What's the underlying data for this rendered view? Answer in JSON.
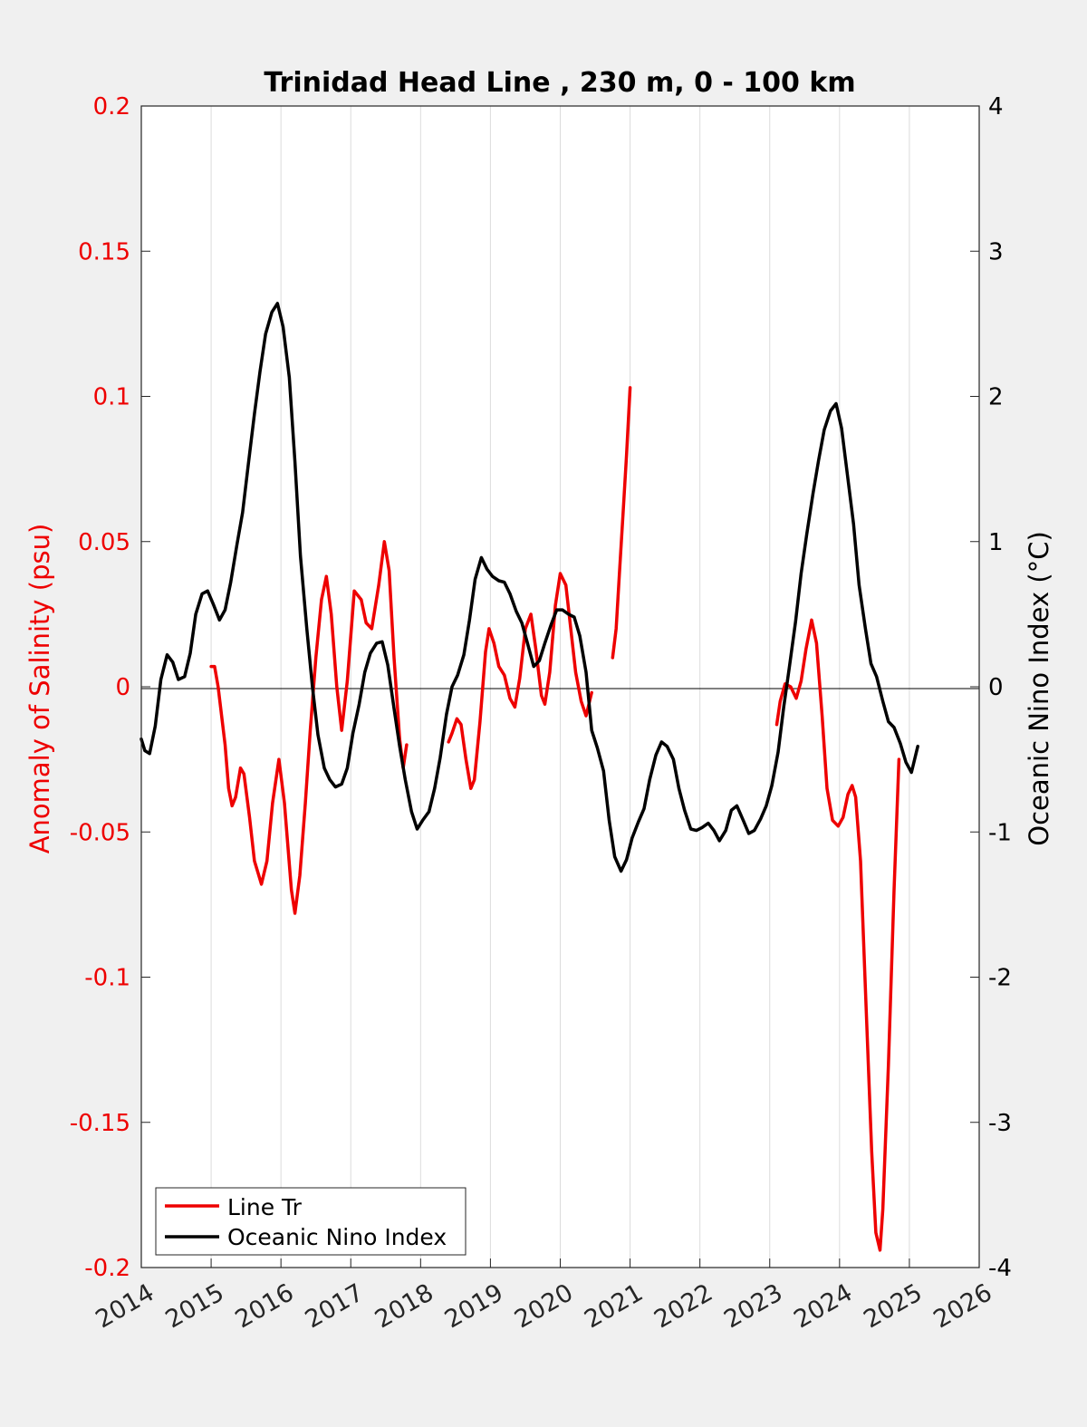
{
  "chart_data": {
    "type": "line",
    "title": "Trinidad Head Line , 230 m, 0 - 100 km",
    "ylabel_left": "Anomaly of Salinity (psu)",
    "ylabel_right": "Oceanic Nino Index (°C)",
    "xlim": [
      2014,
      2026
    ],
    "ylim_left": [
      -0.2,
      0.2
    ],
    "ylim_right": [
      -4,
      4
    ],
    "x_ticks": [
      "2014",
      "2015",
      "2016",
      "2017",
      "2018",
      "2019",
      "2020",
      "2021",
      "2022",
      "2023",
      "2024",
      "2025",
      "2026"
    ],
    "y_left_ticks": [
      "-0.2",
      "-0.15",
      "-0.1",
      "-0.05",
      "0",
      "0.05",
      "0.1",
      "0.15",
      "0.2"
    ],
    "y_right_ticks": [
      "-4",
      "-3",
      "-2",
      "-1",
      "0",
      "1",
      "2",
      "3",
      "4"
    ],
    "grid": "vertical",
    "legend_position": "bottom-left",
    "colors": {
      "salinity": "#ee0000",
      "oni": "#000000",
      "left_axis": "#ee0000",
      "right_axis": "#000000"
    },
    "series": [
      {
        "name": "Line Tr",
        "axis": "left",
        "segments": [
          [
            [
              2015.0,
              0.007
            ],
            [
              2015.05,
              0.007
            ],
            [
              2015.1,
              0.0
            ],
            [
              2015.2,
              -0.02
            ],
            [
              2015.25,
              -0.035
            ],
            [
              2015.3,
              -0.041
            ],
            [
              2015.35,
              -0.038
            ],
            [
              2015.42,
              -0.028
            ],
            [
              2015.47,
              -0.03
            ],
            [
              2015.55,
              -0.045
            ],
            [
              2015.62,
              -0.06
            ],
            [
              2015.72,
              -0.068
            ],
            [
              2015.8,
              -0.06
            ],
            [
              2015.88,
              -0.04
            ],
            [
              2015.97,
              -0.025
            ],
            [
              2016.05,
              -0.04
            ],
            [
              2016.15,
              -0.07
            ],
            [
              2016.2,
              -0.078
            ],
            [
              2016.27,
              -0.065
            ],
            [
              2016.35,
              -0.04
            ],
            [
              2016.42,
              -0.015
            ],
            [
              2016.5,
              0.01
            ],
            [
              2016.58,
              0.03
            ],
            [
              2016.65,
              0.038
            ],
            [
              2016.72,
              0.025
            ],
            [
              2016.8,
              0.0
            ],
            [
              2016.87,
              -0.015
            ],
            [
              2016.95,
              0.002
            ],
            [
              2017.05,
              0.033
            ],
            [
              2017.15,
              0.03
            ],
            [
              2017.22,
              0.022
            ],
            [
              2017.3,
              0.02
            ],
            [
              2017.4,
              0.035
            ],
            [
              2017.48,
              0.05
            ],
            [
              2017.55,
              0.04
            ],
            [
              2017.62,
              0.01
            ],
            [
              2017.7,
              -0.018
            ],
            [
              2017.75,
              -0.028
            ],
            [
              2017.8,
              -0.02
            ]
          ],
          [
            [
              2018.4,
              -0.019
            ],
            [
              2018.45,
              -0.016
            ],
            [
              2018.52,
              -0.011
            ],
            [
              2018.58,
              -0.013
            ],
            [
              2018.65,
              -0.025
            ],
            [
              2018.72,
              -0.035
            ],
            [
              2018.77,
              -0.032
            ],
            [
              2018.85,
              -0.012
            ],
            [
              2018.93,
              0.012
            ],
            [
              2018.98,
              0.02
            ],
            [
              2019.05,
              0.015
            ],
            [
              2019.12,
              0.007
            ],
            [
              2019.2,
              0.004
            ],
            [
              2019.28,
              -0.004
            ],
            [
              2019.35,
              -0.007
            ],
            [
              2019.42,
              0.003
            ],
            [
              2019.5,
              0.02
            ],
            [
              2019.58,
              0.025
            ],
            [
              2019.65,
              0.013
            ],
            [
              2019.73,
              -0.003
            ],
            [
              2019.78,
              -0.006
            ],
            [
              2019.85,
              0.005
            ],
            [
              2019.93,
              0.028
            ],
            [
              2020.0,
              0.039
            ],
            [
              2020.08,
              0.035
            ],
            [
              2020.15,
              0.02
            ],
            [
              2020.22,
              0.005
            ],
            [
              2020.3,
              -0.005
            ],
            [
              2020.37,
              -0.01
            ],
            [
              2020.45,
              -0.002
            ]
          ],
          [
            [
              2020.75,
              0.01
            ],
            [
              2020.8,
              0.02
            ],
            [
              2020.85,
              0.04
            ],
            [
              2020.9,
              0.06
            ],
            [
              2020.95,
              0.08
            ],
            [
              2021.0,
              0.103
            ]
          ],
          [
            [
              2023.1,
              -0.013
            ],
            [
              2023.15,
              -0.005
            ],
            [
              2023.22,
              0.001
            ],
            [
              2023.3,
              0.0
            ],
            [
              2023.38,
              -0.004
            ],
            [
              2023.45,
              0.002
            ],
            [
              2023.52,
              0.013
            ],
            [
              2023.6,
              0.023
            ],
            [
              2023.67,
              0.015
            ],
            [
              2023.75,
              -0.01
            ],
            [
              2023.82,
              -0.035
            ],
            [
              2023.9,
              -0.046
            ],
            [
              2023.98,
              -0.048
            ],
            [
              2024.05,
              -0.045
            ],
            [
              2024.12,
              -0.037
            ],
            [
              2024.18,
              -0.034
            ],
            [
              2024.23,
              -0.038
            ],
            [
              2024.3,
              -0.06
            ],
            [
              2024.38,
              -0.11
            ],
            [
              2024.46,
              -0.16
            ],
            [
              2024.52,
              -0.188
            ],
            [
              2024.58,
              -0.194
            ],
            [
              2024.62,
              -0.18
            ],
            [
              2024.7,
              -0.13
            ],
            [
              2024.78,
              -0.07
            ],
            [
              2024.85,
              -0.025
            ]
          ]
        ]
      },
      {
        "name": "Oceanic Nino Index",
        "axis": "right",
        "segments": [
          [
            [
              2014.0,
              -0.36
            ],
            [
              2014.05,
              -0.44
            ],
            [
              2014.12,
              -0.46
            ],
            [
              2014.2,
              -0.27
            ],
            [
              2014.28,
              0.05
            ],
            [
              2014.37,
              0.22
            ],
            [
              2014.45,
              0.17
            ],
            [
              2014.53,
              0.05
            ],
            [
              2014.62,
              0.07
            ],
            [
              2014.7,
              0.23
            ],
            [
              2014.78,
              0.5
            ],
            [
              2014.87,
              0.64
            ],
            [
              2014.95,
              0.66
            ],
            [
              2015.03,
              0.57
            ],
            [
              2015.12,
              0.46
            ],
            [
              2015.2,
              0.53
            ],
            [
              2015.28,
              0.72
            ],
            [
              2015.37,
              0.98
            ],
            [
              2015.45,
              1.2
            ],
            [
              2015.53,
              1.52
            ],
            [
              2015.62,
              1.88
            ],
            [
              2015.7,
              2.17
            ],
            [
              2015.78,
              2.43
            ],
            [
              2015.87,
              2.58
            ],
            [
              2015.95,
              2.64
            ],
            [
              2016.03,
              2.48
            ],
            [
              2016.12,
              2.13
            ],
            [
              2016.2,
              1.55
            ],
            [
              2016.28,
              0.9
            ],
            [
              2016.37,
              0.4
            ],
            [
              2016.45,
              0.0
            ],
            [
              2016.53,
              -0.33
            ],
            [
              2016.62,
              -0.56
            ],
            [
              2016.7,
              -0.64
            ],
            [
              2016.78,
              -0.69
            ],
            [
              2016.87,
              -0.67
            ],
            [
              2016.95,
              -0.56
            ],
            [
              2017.03,
              -0.32
            ],
            [
              2017.12,
              -0.12
            ],
            [
              2017.2,
              0.1
            ],
            [
              2017.28,
              0.23
            ],
            [
              2017.37,
              0.3
            ],
            [
              2017.45,
              0.31
            ],
            [
              2017.53,
              0.15
            ],
            [
              2017.62,
              -0.15
            ],
            [
              2017.7,
              -0.41
            ],
            [
              2017.78,
              -0.64
            ],
            [
              2017.87,
              -0.86
            ],
            [
              2017.95,
              -0.98
            ],
            [
              2018.03,
              -0.92
            ],
            [
              2018.12,
              -0.86
            ],
            [
              2018.2,
              -0.7
            ],
            [
              2018.28,
              -0.49
            ],
            [
              2018.37,
              -0.19
            ],
            [
              2018.45,
              0.0
            ],
            [
              2018.53,
              0.08
            ],
            [
              2018.62,
              0.22
            ],
            [
              2018.7,
              0.46
            ],
            [
              2018.78,
              0.74
            ],
            [
              2018.87,
              0.89
            ],
            [
              2018.95,
              0.81
            ],
            [
              2019.03,
              0.76
            ],
            [
              2019.12,
              0.73
            ],
            [
              2019.2,
              0.72
            ],
            [
              2019.28,
              0.64
            ],
            [
              2019.37,
              0.52
            ],
            [
              2019.45,
              0.44
            ],
            [
              2019.53,
              0.3
            ],
            [
              2019.62,
              0.14
            ],
            [
              2019.7,
              0.18
            ],
            [
              2019.78,
              0.3
            ],
            [
              2019.87,
              0.43
            ],
            [
              2019.95,
              0.53
            ],
            [
              2020.03,
              0.53
            ],
            [
              2020.12,
              0.5
            ],
            [
              2020.2,
              0.48
            ],
            [
              2020.28,
              0.35
            ],
            [
              2020.37,
              0.1
            ],
            [
              2020.45,
              -0.3
            ],
            [
              2020.53,
              -0.42
            ],
            [
              2020.62,
              -0.58
            ],
            [
              2020.7,
              -0.92
            ],
            [
              2020.78,
              -1.17
            ],
            [
              2020.87,
              -1.27
            ],
            [
              2020.95,
              -1.19
            ],
            [
              2021.03,
              -1.04
            ],
            [
              2021.12,
              -0.93
            ],
            [
              2021.2,
              -0.84
            ],
            [
              2021.28,
              -0.64
            ],
            [
              2021.37,
              -0.47
            ],
            [
              2021.45,
              -0.38
            ],
            [
              2021.53,
              -0.41
            ],
            [
              2021.62,
              -0.5
            ],
            [
              2021.7,
              -0.7
            ],
            [
              2021.78,
              -0.85
            ],
            [
              2021.87,
              -0.98
            ],
            [
              2021.95,
              -0.99
            ],
            [
              2022.03,
              -0.97
            ],
            [
              2022.12,
              -0.94
            ],
            [
              2022.2,
              -0.99
            ],
            [
              2022.28,
              -1.06
            ],
            [
              2022.37,
              -0.99
            ],
            [
              2022.45,
              -0.85
            ],
            [
              2022.53,
              -0.82
            ],
            [
              2022.62,
              -0.92
            ],
            [
              2022.7,
              -1.01
            ],
            [
              2022.78,
              -0.99
            ],
            [
              2022.87,
              -0.91
            ],
            [
              2022.95,
              -0.82
            ],
            [
              2023.03,
              -0.68
            ],
            [
              2023.12,
              -0.45
            ],
            [
              2023.2,
              -0.14
            ],
            [
              2023.28,
              0.13
            ],
            [
              2023.37,
              0.45
            ],
            [
              2023.45,
              0.78
            ],
            [
              2023.53,
              1.05
            ],
            [
              2023.62,
              1.33
            ],
            [
              2023.7,
              1.56
            ],
            [
              2023.78,
              1.77
            ],
            [
              2023.87,
              1.9
            ],
            [
              2023.95,
              1.95
            ],
            [
              2024.03,
              1.78
            ],
            [
              2024.12,
              1.43
            ],
            [
              2024.2,
              1.12
            ],
            [
              2024.28,
              0.7
            ],
            [
              2024.37,
              0.4
            ],
            [
              2024.45,
              0.16
            ],
            [
              2024.53,
              0.07
            ],
            [
              2024.62,
              -0.1
            ],
            [
              2024.7,
              -0.24
            ],
            [
              2024.78,
              -0.28
            ],
            [
              2024.87,
              -0.39
            ],
            [
              2024.95,
              -0.52
            ],
            [
              2025.03,
              -0.59
            ],
            [
              2025.12,
              -0.41
            ]
          ]
        ]
      }
    ]
  }
}
